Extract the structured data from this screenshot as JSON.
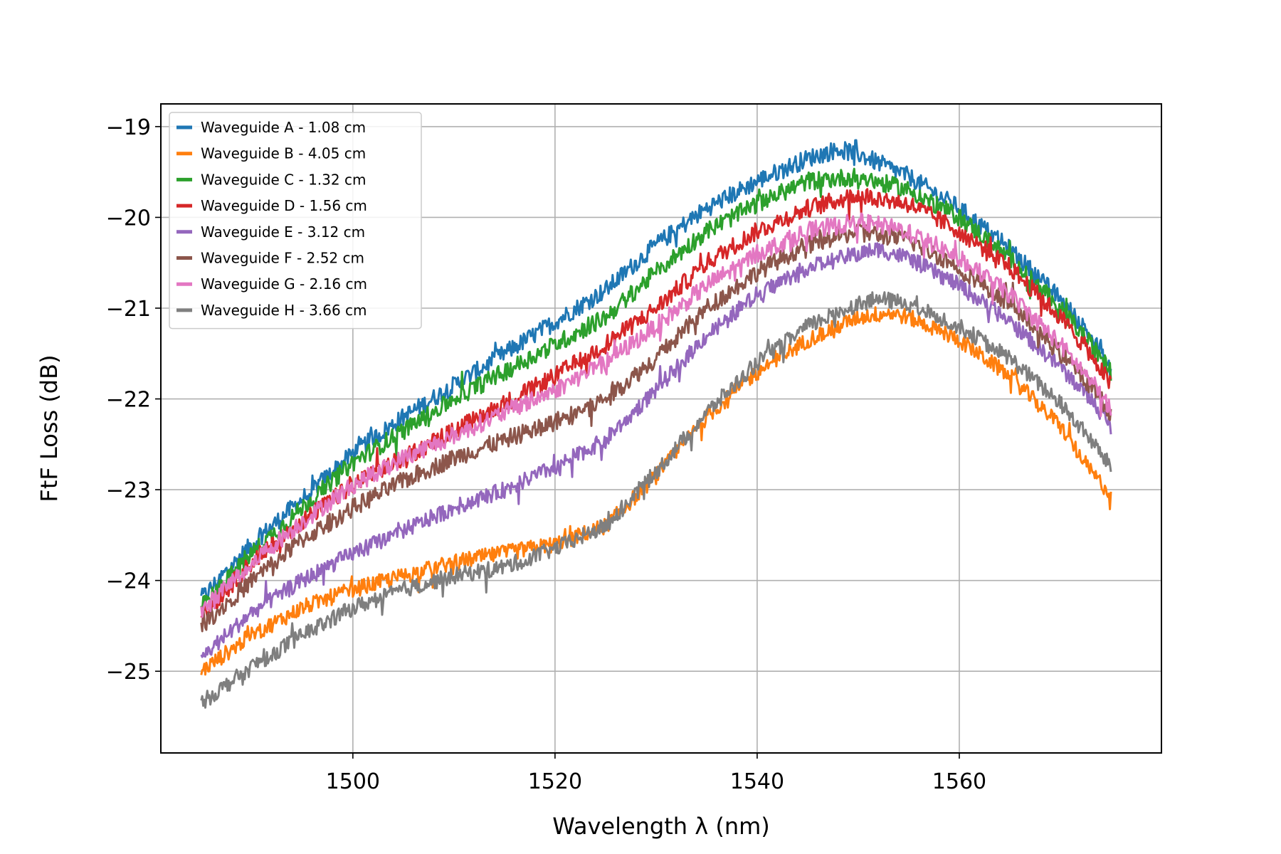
{
  "chart_data": {
    "type": "line",
    "title": "",
    "xlabel": "Wavelength λ (nm)",
    "ylabel": "FtF Loss (dB)",
    "xlim": [
      1481,
      1580
    ],
    "ylim": [
      -25.9,
      -18.75
    ],
    "xticks": [
      1500,
      1520,
      1540,
      1560
    ],
    "yticks": [
      -19,
      -20,
      -21,
      -22,
      -23,
      -24,
      -25
    ],
    "xtick_labels": [
      "1500",
      "1520",
      "1540",
      "1560"
    ],
    "ytick_labels": [
      "−19",
      "−20",
      "−21",
      "−22",
      "−23",
      "−24",
      "−25"
    ],
    "grid": true,
    "legend_position": "top-left",
    "x_range": [
      1485,
      1575
    ],
    "series": [
      {
        "name": "Waveguide A - 1.08 cm",
        "color": "#1f77b4",
        "noise": 0.1,
        "points": [
          [
            1485,
            -24.2
          ],
          [
            1490,
            -23.6
          ],
          [
            1495,
            -23.1
          ],
          [
            1500,
            -22.6
          ],
          [
            1505,
            -22.2
          ],
          [
            1510,
            -21.85
          ],
          [
            1515,
            -21.5
          ],
          [
            1520,
            -21.15
          ],
          [
            1525,
            -20.8
          ],
          [
            1530,
            -20.3
          ],
          [
            1535,
            -19.9
          ],
          [
            1540,
            -19.6
          ],
          [
            1545,
            -19.35
          ],
          [
            1548,
            -19.25
          ],
          [
            1550,
            -19.3
          ],
          [
            1555,
            -19.55
          ],
          [
            1560,
            -19.9
          ],
          [
            1565,
            -20.35
          ],
          [
            1570,
            -20.9
          ],
          [
            1573,
            -21.3
          ],
          [
            1575,
            -21.7
          ]
        ]
      },
      {
        "name": "Waveguide B - 4.05 cm",
        "color": "#ff7f0e",
        "noise": 0.09,
        "points": [
          [
            1485,
            -25.0
          ],
          [
            1490,
            -24.6
          ],
          [
            1495,
            -24.3
          ],
          [
            1500,
            -24.1
          ],
          [
            1505,
            -23.95
          ],
          [
            1510,
            -23.8
          ],
          [
            1515,
            -23.7
          ],
          [
            1520,
            -23.6
          ],
          [
            1525,
            -23.4
          ],
          [
            1530,
            -22.85
          ],
          [
            1535,
            -22.2
          ],
          [
            1540,
            -21.7
          ],
          [
            1545,
            -21.35
          ],
          [
            1550,
            -21.1
          ],
          [
            1553,
            -21.05
          ],
          [
            1555,
            -21.1
          ],
          [
            1560,
            -21.35
          ],
          [
            1565,
            -21.75
          ],
          [
            1570,
            -22.3
          ],
          [
            1573,
            -22.8
          ],
          [
            1575,
            -23.05
          ]
        ]
      },
      {
        "name": "Waveguide C - 1.32 cm",
        "color": "#2ca02c",
        "noise": 0.1,
        "points": [
          [
            1485,
            -24.3
          ],
          [
            1490,
            -23.7
          ],
          [
            1495,
            -23.2
          ],
          [
            1500,
            -22.7
          ],
          [
            1505,
            -22.35
          ],
          [
            1510,
            -22.0
          ],
          [
            1515,
            -21.7
          ],
          [
            1520,
            -21.4
          ],
          [
            1525,
            -21.1
          ],
          [
            1530,
            -20.6
          ],
          [
            1535,
            -20.15
          ],
          [
            1540,
            -19.85
          ],
          [
            1545,
            -19.6
          ],
          [
            1550,
            -19.55
          ],
          [
            1555,
            -19.7
          ],
          [
            1560,
            -20.0
          ],
          [
            1565,
            -20.45
          ],
          [
            1570,
            -21.0
          ],
          [
            1573,
            -21.4
          ],
          [
            1575,
            -21.7
          ]
        ]
      },
      {
        "name": "Waveguide D - 1.56 cm",
        "color": "#d62728",
        "noise": 0.1,
        "points": [
          [
            1485,
            -24.4
          ],
          [
            1490,
            -23.8
          ],
          [
            1495,
            -23.35
          ],
          [
            1500,
            -22.95
          ],
          [
            1505,
            -22.65
          ],
          [
            1510,
            -22.35
          ],
          [
            1515,
            -22.05
          ],
          [
            1520,
            -21.75
          ],
          [
            1525,
            -21.4
          ],
          [
            1530,
            -21.0
          ],
          [
            1535,
            -20.5
          ],
          [
            1540,
            -20.15
          ],
          [
            1545,
            -19.9
          ],
          [
            1550,
            -19.75
          ],
          [
            1555,
            -19.85
          ],
          [
            1560,
            -20.15
          ],
          [
            1565,
            -20.55
          ],
          [
            1570,
            -21.1
          ],
          [
            1573,
            -21.5
          ],
          [
            1575,
            -21.85
          ]
        ]
      },
      {
        "name": "Waveguide E - 3.12 cm",
        "color": "#9467bd",
        "noise": 0.09,
        "points": [
          [
            1485,
            -24.85
          ],
          [
            1490,
            -24.35
          ],
          [
            1495,
            -24.0
          ],
          [
            1500,
            -23.7
          ],
          [
            1505,
            -23.45
          ],
          [
            1510,
            -23.2
          ],
          [
            1515,
            -23.0
          ],
          [
            1520,
            -22.75
          ],
          [
            1525,
            -22.45
          ],
          [
            1530,
            -21.9
          ],
          [
            1535,
            -21.3
          ],
          [
            1540,
            -20.85
          ],
          [
            1545,
            -20.55
          ],
          [
            1550,
            -20.4
          ],
          [
            1552,
            -20.35
          ],
          [
            1555,
            -20.45
          ],
          [
            1560,
            -20.75
          ],
          [
            1565,
            -21.15
          ],
          [
            1570,
            -21.65
          ],
          [
            1573,
            -22.0
          ],
          [
            1575,
            -22.3
          ]
        ]
      },
      {
        "name": "Waveguide F - 2.52 cm",
        "color": "#8c564b",
        "noise": 0.1,
        "points": [
          [
            1485,
            -24.5
          ],
          [
            1490,
            -24.0
          ],
          [
            1495,
            -23.55
          ],
          [
            1500,
            -23.2
          ],
          [
            1505,
            -22.9
          ],
          [
            1510,
            -22.65
          ],
          [
            1515,
            -22.45
          ],
          [
            1520,
            -22.25
          ],
          [
            1525,
            -22.0
          ],
          [
            1530,
            -21.55
          ],
          [
            1535,
            -21.0
          ],
          [
            1540,
            -20.6
          ],
          [
            1545,
            -20.3
          ],
          [
            1550,
            -20.15
          ],
          [
            1555,
            -20.25
          ],
          [
            1560,
            -20.55
          ],
          [
            1565,
            -20.95
          ],
          [
            1570,
            -21.5
          ],
          [
            1573,
            -21.85
          ],
          [
            1575,
            -22.15
          ]
        ]
      },
      {
        "name": "Waveguide G - 2.16 cm",
        "color": "#e377c2",
        "noise": 0.1,
        "points": [
          [
            1485,
            -24.35
          ],
          [
            1490,
            -23.8
          ],
          [
            1495,
            -23.35
          ],
          [
            1500,
            -22.95
          ],
          [
            1505,
            -22.65
          ],
          [
            1510,
            -22.4
          ],
          [
            1515,
            -22.15
          ],
          [
            1520,
            -21.9
          ],
          [
            1525,
            -21.6
          ],
          [
            1530,
            -21.2
          ],
          [
            1535,
            -20.75
          ],
          [
            1540,
            -20.4
          ],
          [
            1545,
            -20.15
          ],
          [
            1550,
            -20.05
          ],
          [
            1555,
            -20.15
          ],
          [
            1560,
            -20.45
          ],
          [
            1565,
            -20.85
          ],
          [
            1570,
            -21.4
          ],
          [
            1573,
            -21.8
          ],
          [
            1575,
            -22.1
          ]
        ]
      },
      {
        "name": "Waveguide H - 3.66 cm",
        "color": "#7f7f7f",
        "noise": 0.09,
        "points": [
          [
            1485,
            -25.35
          ],
          [
            1490,
            -24.95
          ],
          [
            1495,
            -24.6
          ],
          [
            1500,
            -24.3
          ],
          [
            1505,
            -24.1
          ],
          [
            1510,
            -23.95
          ],
          [
            1515,
            -23.85
          ],
          [
            1520,
            -23.65
          ],
          [
            1525,
            -23.4
          ],
          [
            1530,
            -22.8
          ],
          [
            1535,
            -22.15
          ],
          [
            1540,
            -21.6
          ],
          [
            1545,
            -21.2
          ],
          [
            1550,
            -20.95
          ],
          [
            1552,
            -20.9
          ],
          [
            1555,
            -20.95
          ],
          [
            1560,
            -21.2
          ],
          [
            1565,
            -21.55
          ],
          [
            1570,
            -22.05
          ],
          [
            1573,
            -22.45
          ],
          [
            1575,
            -22.75
          ]
        ]
      }
    ]
  }
}
